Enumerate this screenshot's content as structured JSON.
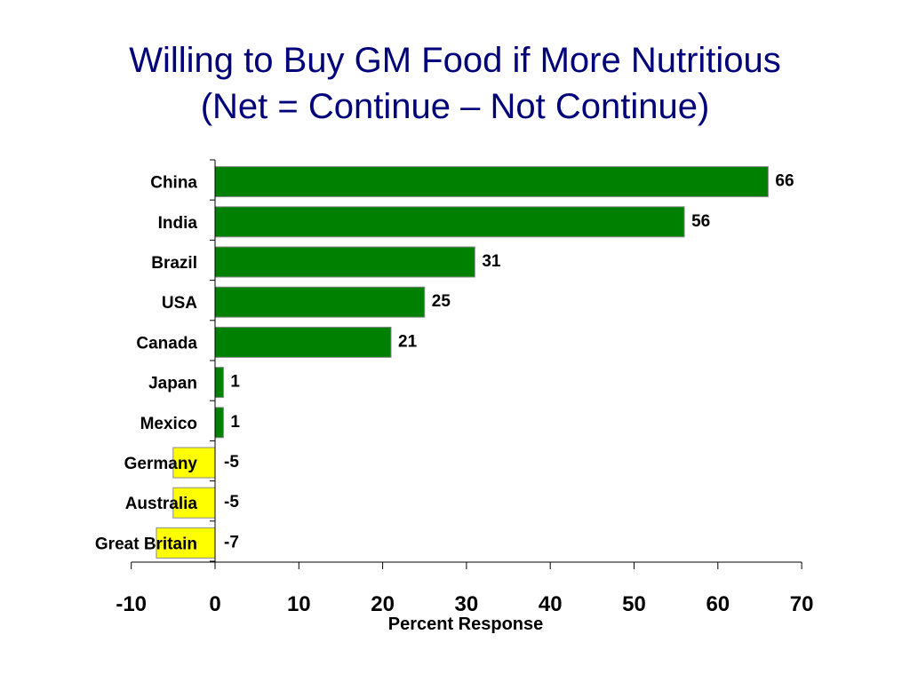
{
  "title_line1": "Willing to Buy GM Food if More Nutritious",
  "title_line2": "(Net = Continue – Not Continue)",
  "colors": {
    "title": "#00007a",
    "positive": "#008000",
    "negative": "#ffff00"
  },
  "chart_data": {
    "type": "bar",
    "orientation": "horizontal",
    "categories": [
      "China",
      "India",
      "Brazil",
      "USA",
      "Canada",
      "Japan",
      "Mexico",
      "Germany",
      "Australia",
      "Great Britain"
    ],
    "values": [
      66,
      56,
      31,
      25,
      21,
      1,
      1,
      -5,
      -5,
      -7
    ],
    "value_labels": [
      "66",
      "56",
      "31",
      "25",
      "21",
      "1",
      "1",
      "-5",
      "-5",
      "-7"
    ],
    "xlabel": "Percent Response",
    "xlim": [
      -10,
      70
    ],
    "xticks": [
      -10,
      0,
      10,
      20,
      30,
      40,
      50,
      60,
      70
    ],
    "grid": false,
    "legend": "none"
  }
}
